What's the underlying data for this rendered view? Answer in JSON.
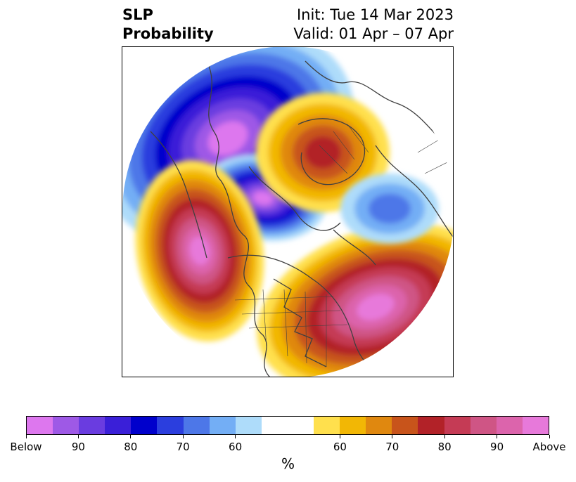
{
  "title": {
    "left_line1": "SLP",
    "left_line2": "Probability",
    "init": "Init: Tue 14 Mar 2023",
    "valid": "Valid: 01 Apr – 07 Apr"
  },
  "map": {
    "projection": "north-polar-stereographic",
    "below_colors": [
      "#dd77ee",
      "#9e59e6",
      "#6a3ce0",
      "#3a1fd8",
      "#0000cc",
      "#2b3ede",
      "#4d77e8",
      "#73aef5",
      "#aedcfa"
    ],
    "neutral_color": "#ffffff",
    "above_colors": [
      "#ffe04d",
      "#f2b705",
      "#e0880f",
      "#c8541b",
      "#b22228",
      "#c53b55",
      "#cf5585",
      "#dc64ac",
      "#e779da"
    ]
  },
  "colorbar": {
    "ticks": [
      "Below",
      "90",
      "80",
      "70",
      "60",
      "60",
      "70",
      "80",
      "90",
      "Above"
    ],
    "label": "%"
  }
}
